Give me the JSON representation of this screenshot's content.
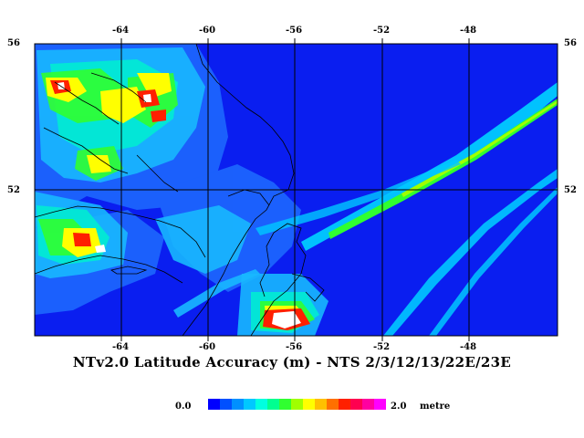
{
  "map": {
    "title": "NTv2.0 Latitude Accuracy (m) - NTS 2/3/12/13/22E/23E",
    "lon_ticks_top": [
      "-64",
      "-60",
      "-56",
      "-52",
      "-48"
    ],
    "lon_ticks_bottom": [
      "-64",
      "-60",
      "-56",
      "-52",
      "-48"
    ],
    "lat_ticks_left": [
      "56",
      "52"
    ],
    "lat_ticks_right": [
      "56",
      "52"
    ],
    "background_color": "#0a1ef0",
    "gridline_color": "#000000",
    "coastline_color": "#000000"
  },
  "legend": {
    "min_label": "0.0",
    "max_label": "2.0",
    "unit": "metre",
    "colors": [
      "#0000ff",
      "#0050ff",
      "#0090ff",
      "#00c8ff",
      "#00ffe0",
      "#00ff90",
      "#30ff30",
      "#a0ff00",
      "#ffff00",
      "#ffc000",
      "#ff7000",
      "#ff2000",
      "#ff0050",
      "#ff00a0",
      "#ff00ff"
    ]
  }
}
